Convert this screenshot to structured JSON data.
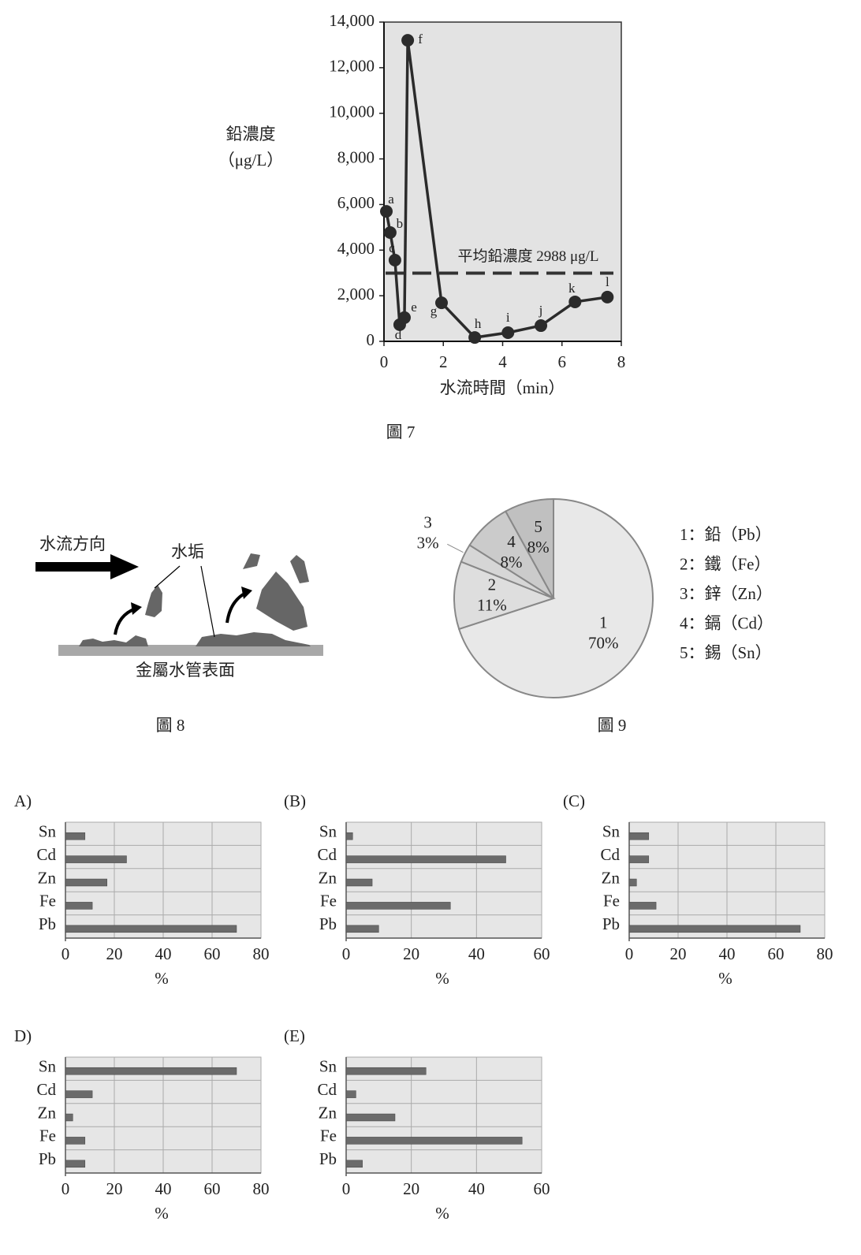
{
  "chart_data": [
    {
      "type": "line",
      "caption": "圖 7",
      "y_label": [
        "鉛濃度",
        "（μg/L）"
      ],
      "x_label": "水流時間（min）",
      "x": [
        0.08,
        0.21,
        0.37,
        0.53,
        0.69,
        0.8,
        1.94,
        3.06,
        4.18,
        5.29,
        6.44,
        7.53
      ],
      "values": [
        5700,
        4770,
        3560,
        730,
        1040,
        13200,
        1690,
        170,
        380,
        690,
        1730,
        1940
      ],
      "point_labels": [
        "a",
        "b",
        "c",
        "d",
        "e",
        "f",
        "g",
        "h",
        "i",
        "j",
        "k",
        "l"
      ],
      "color": "#2b2b2b",
      "xlim": [
        0,
        8
      ],
      "xticks": [
        0,
        2,
        4,
        6,
        8
      ],
      "ylim": [
        0,
        14000
      ],
      "yticks": [
        0,
        {
          "value": 2000,
          "label": "2,000"
        },
        {
          "value": 4000,
          "label": "4,000"
        },
        {
          "value": 6000,
          "label": "6,000"
        },
        {
          "value": 8000,
          "label": "8,000"
        },
        {
          "value": 10000,
          "label": "10,000"
        },
        {
          "value": 12000,
          "label": "12,000"
        },
        {
          "value": 14000,
          "label": "14,000"
        }
      ],
      "reference_line": {
        "value": 2988,
        "label": "平均鉛濃度 2988 μg/L"
      }
    },
    {
      "type": "pie",
      "caption": "圖 9",
      "categories": [
        "1",
        "2",
        "3",
        "4",
        "5"
      ],
      "values": [
        70,
        11,
        3,
        8,
        8
      ],
      "value_labels": [
        "70%",
        "11%",
        "3%",
        "8%",
        "8%"
      ],
      "colors": [
        "#e8e8e8",
        "#dedede",
        "#d6d6d6",
        "#cbcbcb",
        "#c0c0c0"
      ],
      "legend": [
        "1：鉛（Pb）",
        "2：鐵（Fe）",
        "3：鋅（Zn）",
        "4：鎘（Cd）",
        "5：錫（Sn）"
      ]
    },
    {
      "type": "barh",
      "title": "A)",
      "categories": [
        "Pb",
        "Fe",
        "Zn",
        "Cd",
        "Sn"
      ],
      "values": [
        70,
        11,
        17,
        25,
        8
      ],
      "color": "#6b6b6b",
      "xlim": [
        0,
        80
      ],
      "xticks": [
        0,
        20,
        40,
        60,
        80
      ],
      "x_label": "%",
      "grid": true
    },
    {
      "type": "barh",
      "title": "(B)",
      "categories": [
        "Pb",
        "Fe",
        "Zn",
        "Cd",
        "Sn"
      ],
      "values": [
        10,
        32,
        8,
        49,
        2
      ],
      "color": "#6b6b6b",
      "xlim": [
        0,
        60
      ],
      "xticks": [
        0,
        20,
        40,
        60
      ],
      "x_label": "%",
      "grid": true
    },
    {
      "type": "barh",
      "title": "(C)",
      "categories": [
        "Pb",
        "Fe",
        "Zn",
        "Cd",
        "Sn"
      ],
      "values": [
        70,
        11,
        3,
        8,
        8
      ],
      "color": "#6b6b6b",
      "xlim": [
        0,
        80
      ],
      "xticks": [
        0,
        20,
        40,
        60,
        80
      ],
      "x_label": "%",
      "grid": true
    },
    {
      "type": "barh",
      "title": "D)",
      "categories": [
        "Pb",
        "Fe",
        "Zn",
        "Cd",
        "Sn"
      ],
      "values": [
        8,
        8,
        3,
        11,
        70
      ],
      "color": "#6b6b6b",
      "xlim": [
        0,
        80
      ],
      "xticks": [
        0,
        20,
        40,
        60,
        80
      ],
      "x_label": "%",
      "grid": true
    },
    {
      "type": "barh",
      "title": "(E)",
      "categories": [
        "Pb",
        "Fe",
        "Zn",
        "Cd",
        "Sn"
      ],
      "values": [
        5,
        54,
        15,
        3,
        24.5
      ],
      "color": "#6b6b6b",
      "xlim": [
        0,
        60
      ],
      "xticks": [
        0,
        20,
        40,
        60
      ],
      "x_label": "%",
      "grid": true
    }
  ],
  "figure_8": {
    "flow_direction": "水流方向",
    "scale": "水垢",
    "pipe_surface": "金屬水管表面",
    "caption": "圖 8"
  }
}
